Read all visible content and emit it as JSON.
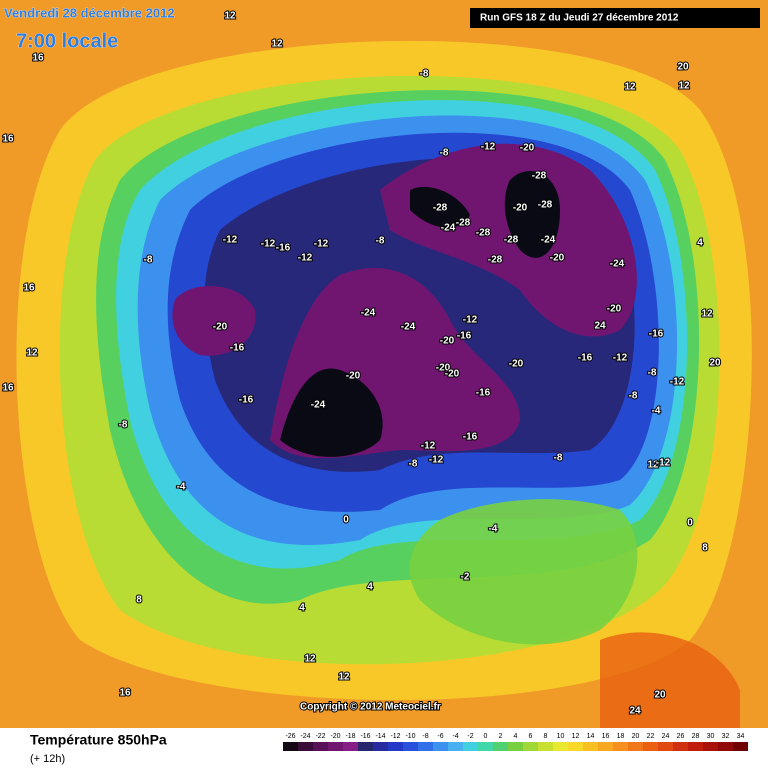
{
  "header": {
    "date": "Vendredi 28 décembre 2012",
    "time": "7:00 locale",
    "run": "Run GFS 18 Z du Jeudi 27 décembre 2012"
  },
  "footer": {
    "title": "Température 850hPa",
    "subtitle": "(+ 12h)",
    "copyright": "Copyright © 2012 Meteociel.fr"
  },
  "legend": {
    "values": [
      -26,
      -24,
      -22,
      -20,
      -18,
      -16,
      -14,
      -12,
      -10,
      -8,
      -6,
      -4,
      -2,
      0,
      2,
      4,
      6,
      8,
      10,
      12,
      14,
      16,
      18,
      20,
      22,
      24,
      26,
      28,
      30,
      32,
      34
    ],
    "colors": [
      "#140814",
      "#3a0c3a",
      "#581058",
      "#701670",
      "#861e86",
      "#26266e",
      "#2a2aa0",
      "#2438c8",
      "#2850dc",
      "#3070e8",
      "#3c90ee",
      "#48b0f0",
      "#40d0e0",
      "#40d8a8",
      "#50d070",
      "#78d040",
      "#a0d838",
      "#c8e030",
      "#e8e830",
      "#f8d828",
      "#f8c020",
      "#f8a820",
      "#f89020",
      "#f07818",
      "#e86010",
      "#e04810",
      "#d03010",
      "#c01c0c",
      "#a81008",
      "#900808",
      "#700404"
    ]
  },
  "map": {
    "contour_labels": [
      -20,
      -16,
      -16,
      -24,
      -20,
      -24,
      -24,
      -20,
      -16,
      -12,
      -20,
      -20,
      -20,
      -16,
      -12,
      -12,
      -8,
      -16,
      -8,
      -28,
      -24,
      -28,
      -28,
      -28,
      -28,
      -20,
      -20,
      -28,
      -24,
      -20,
      -28,
      -12,
      -8,
      -8,
      -12,
      -12,
      -16,
      -12,
      -12,
      -8,
      -8,
      -8,
      -4,
      0,
      -4,
      4,
      4,
      8,
      12,
      12,
      16,
      20,
      24,
      16,
      16,
      16,
      12,
      12,
      20,
      12,
      8,
      4,
      -16,
      -12,
      -8,
      -4,
      -8,
      12,
      20,
      12,
      16,
      12,
      12,
      -2,
      0,
      -12,
      -12,
      -16,
      -20,
      24,
      -24
    ]
  }
}
